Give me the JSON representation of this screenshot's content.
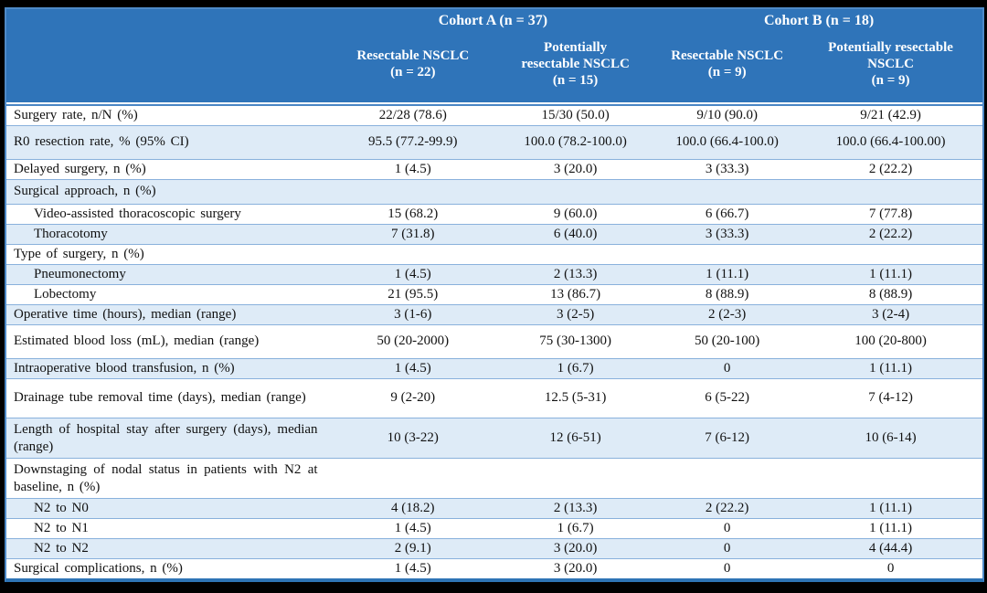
{
  "table": {
    "cohort_headers": [
      {
        "label": "Cohort A (n = 37)"
      },
      {
        "label": "Cohort B (n = 18)"
      }
    ],
    "columns": [
      {
        "label": "Resectable NSCLC\n(n = 22)"
      },
      {
        "label": "Potentially\nresectable NSCLC\n(n = 15)"
      },
      {
        "label": "Resectable NSCLC\n(n = 9)"
      },
      {
        "label": "Potentially resectable\nNSCLC\n(n = 9)"
      }
    ],
    "rows": [
      {
        "label": "Surgery rate, n/N (%)",
        "indent": false,
        "size": "normal",
        "values": [
          "22/28 (78.6)",
          "15/30 (50.0)",
          "9/10 (90.0)",
          "9/21 (42.9)"
        ]
      },
      {
        "label": "R0 resection rate, % (95% CI)",
        "indent": false,
        "size": "tall",
        "values": [
          "95.5 (77.2-99.9)",
          "100.0 (78.2-100.0)",
          "100.0 (66.4-100.0)",
          "100.0 (66.4-100.00)"
        ]
      },
      {
        "label": "Delayed surgery, n (%)",
        "indent": false,
        "size": "normal",
        "values": [
          "1 (4.5)",
          "3 (20.0)",
          "3 (33.3)",
          "2 (22.2)"
        ]
      },
      {
        "label": "Surgical approach, n (%)",
        "indent": false,
        "size": "medium",
        "values": [
          "",
          "",
          "",
          ""
        ]
      },
      {
        "label": "Video-assisted thoracoscopic surgery",
        "indent": true,
        "size": "normal",
        "values": [
          "15 (68.2)",
          "9 (60.0)",
          "6 (66.7)",
          "7 (77.8)"
        ]
      },
      {
        "label": "Thoracotomy",
        "indent": true,
        "size": "normal",
        "values": [
          "7 (31.8)",
          "6 (40.0)",
          "3 (33.3)",
          "2 (22.2)"
        ]
      },
      {
        "label": "Type of surgery, n (%)",
        "indent": false,
        "size": "normal",
        "values": [
          "",
          "",
          "",
          ""
        ]
      },
      {
        "label": "Pneumonectomy",
        "indent": true,
        "size": "normal",
        "values": [
          "1 (4.5)",
          "2 (13.3)",
          "1 (11.1)",
          "1 (11.1)"
        ]
      },
      {
        "label": "Lobectomy",
        "indent": true,
        "size": "normal",
        "values": [
          "21 (95.5)",
          "13 (86.7)",
          "8 (88.9)",
          "8 (88.9)"
        ]
      },
      {
        "label": "Operative time (hours), median (range)",
        "indent": false,
        "size": "normal",
        "values": [
          "3 (1-6)",
          "3 (2-5)",
          "2 (2-3)",
          "3 (2-4)"
        ]
      },
      {
        "label": "Estimated blood loss (mL), median (range)",
        "indent": false,
        "size": "tall",
        "values": [
          "50 (20-2000)",
          "75 (30-1300)",
          "50 (20-100)",
          "100 (20-800)"
        ]
      },
      {
        "label": "Intraoperative blood transfusion, n (%)",
        "indent": false,
        "size": "normal",
        "values": [
          "1 (4.5)",
          "1 (6.7)",
          "0",
          "1 (11.1)"
        ]
      },
      {
        "label": "Drainage tube removal time (days), median (range)",
        "indent": false,
        "size": "twoline",
        "values": [
          "9 (2-20)",
          "12.5 (5-31)",
          "6 (5-22)",
          "7 (4-12)"
        ]
      },
      {
        "label": "Length of hospital stay after surgery (days), median (range)",
        "indent": false,
        "size": "twoline",
        "values": [
          "10 (3-22)",
          "12 (6-51)",
          "7 (6-12)",
          "10 (6-14)"
        ]
      },
      {
        "label": "Downstaging of nodal status in patients with N2 at baseline, n (%)",
        "indent": false,
        "size": "twoline",
        "values": [
          "",
          "",
          "",
          ""
        ]
      },
      {
        "label": "N2 to N0",
        "indent": true,
        "size": "normal",
        "values": [
          "4 (18.2)",
          "2 (13.3)",
          "2 (22.2)",
          "1 (11.1)"
        ]
      },
      {
        "label": "N2 to N1",
        "indent": true,
        "size": "normal",
        "values": [
          "1 (4.5)",
          "1 (6.7)",
          "0",
          "1 (11.1)"
        ]
      },
      {
        "label": "N2 to N2",
        "indent": true,
        "size": "normal",
        "values": [
          "2 (9.1)",
          "3 (20.0)",
          "0",
          "4 (44.4)"
        ]
      },
      {
        "label": "Surgical complications, n (%)",
        "indent": false,
        "size": "normal",
        "values": [
          "1 (4.5)",
          "3 (20.0)",
          "0",
          "0"
        ]
      }
    ],
    "colors": {
      "header_bg": "#2F74B9",
      "shaded_row_bg": "#DEEBF7",
      "outer_border": "#4E8AC8",
      "bottom_border": "#2E74B5",
      "row_divider": "#89B1DC",
      "header_text": "#FFFFFF",
      "body_text": "#111111"
    }
  }
}
